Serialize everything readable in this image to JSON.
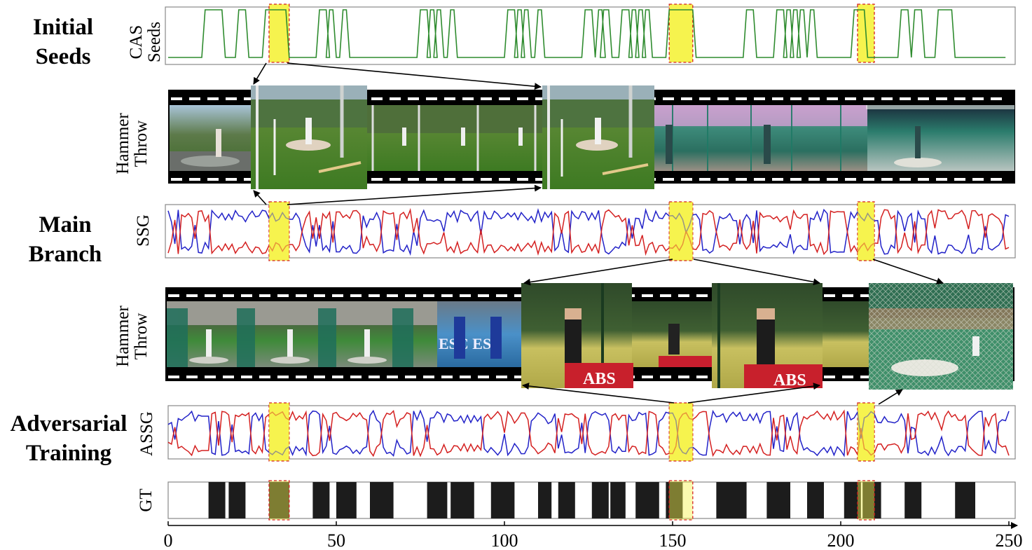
{
  "sections": [
    {
      "lines": [
        "Initial",
        "Seeds"
      ]
    },
    {
      "lines": [
        "Main",
        "Branch"
      ]
    },
    {
      "lines": [
        "Adversarial",
        "Training"
      ]
    }
  ],
  "row_labels": {
    "cas": [
      "CAS",
      "Seeds"
    ],
    "strip1": [
      "Hammer",
      "Throw"
    ],
    "ssg": [
      "SSG"
    ],
    "strip2": [
      "Hammer",
      "Throw"
    ],
    "assg": [
      "ASSG"
    ],
    "gt": [
      "GT"
    ]
  },
  "overlay_text": {
    "ad_banner_1": "ABS",
    "ad_banner_2": "ABS",
    "wall_text": "ESC ESC"
  },
  "colors": {
    "seeds": "#2e8b2e",
    "foreground": "#d42020",
    "background": "#2222c8",
    "highlight": "#f6f34e",
    "highlight_border": "#d42020",
    "gt_fill": "#1c1c1c"
  },
  "chart_data": {
    "type": "line",
    "xlim": [
      0,
      250
    ],
    "x_ticks": [
      0,
      50,
      100,
      150,
      200,
      250
    ],
    "highlight_ranges": [
      [
        30,
        36
      ],
      [
        149,
        156
      ],
      [
        205,
        210
      ]
    ],
    "cas_seed_intervals": [
      [
        11,
        16
      ],
      [
        21,
        23
      ],
      [
        29,
        35
      ],
      [
        45,
        47
      ],
      [
        48,
        49
      ],
      [
        52,
        53
      ],
      [
        75,
        77
      ],
      [
        78,
        79
      ],
      [
        80,
        81
      ],
      [
        84,
        85
      ],
      [
        101,
        103
      ],
      [
        104,
        105
      ],
      [
        106,
        107
      ],
      [
        110,
        111
      ],
      [
        124,
        126
      ],
      [
        128,
        129
      ],
      [
        129.5,
        131
      ],
      [
        135,
        137
      ],
      [
        138,
        139
      ],
      [
        140,
        141
      ],
      [
        142,
        143
      ],
      [
        149,
        156
      ],
      [
        172,
        174
      ],
      [
        181,
        183
      ],
      [
        184,
        185
      ],
      [
        186,
        187
      ],
      [
        188,
        189
      ],
      [
        191,
        192
      ],
      [
        204,
        207
      ],
      [
        218,
        220
      ],
      [
        222,
        224
      ],
      [
        229,
        233
      ]
    ],
    "gt_intervals": [
      [
        12,
        17
      ],
      [
        18,
        23
      ],
      [
        30,
        36
      ],
      [
        43,
        48
      ],
      [
        50,
        56
      ],
      [
        60,
        67
      ],
      [
        77,
        83
      ],
      [
        84,
        91
      ],
      [
        96,
        103
      ],
      [
        110,
        114
      ],
      [
        116,
        121
      ],
      [
        126,
        131
      ],
      [
        131.5,
        136
      ],
      [
        139,
        146
      ],
      [
        148,
        153
      ],
      [
        163,
        172
      ],
      [
        178,
        185
      ],
      [
        190,
        195
      ],
      [
        201,
        206
      ],
      [
        206.5,
        212
      ],
      [
        219,
        224
      ],
      [
        234,
        240
      ]
    ]
  }
}
